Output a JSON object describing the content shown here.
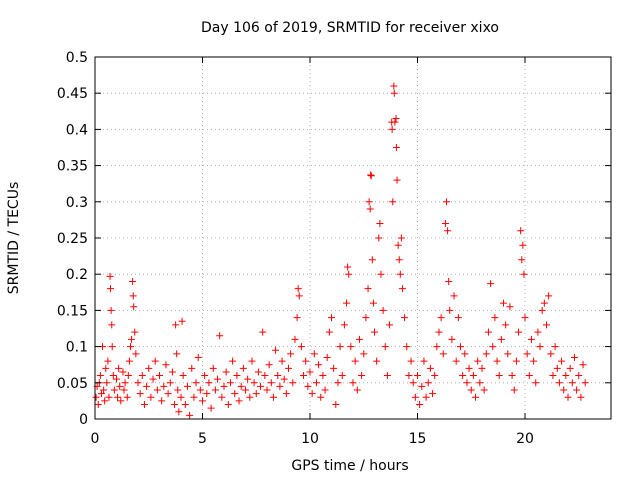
{
  "chart_data": {
    "type": "scatter",
    "title": "Day 106 of 2019, SRMTID for receiver xixo",
    "xlabel": "GPS time / hours",
    "ylabel": "SRMTID / TECUs",
    "xlim": [
      0,
      24
    ],
    "ylim": [
      0,
      0.5
    ],
    "x_ticks": [
      0,
      5,
      10,
      15,
      20
    ],
    "y_ticks": [
      0,
      0.05,
      0.1,
      0.15,
      0.2,
      0.25,
      0.3,
      0.35,
      0.4,
      0.45,
      0.5
    ],
    "x_tick_labels": [
      "0",
      "5",
      "10",
      "15",
      "20"
    ],
    "y_tick_labels": [
      "0",
      "0.05",
      "0.1",
      "0.15",
      "0.2",
      "0.25",
      "0.3",
      "0.35",
      "0.4",
      "0.45",
      "0.5"
    ],
    "grid": true,
    "marker": "plus",
    "color": "#ff0000",
    "series": [
      {
        "name": "SRMTID",
        "points": [
          [
            0.05,
            0.03
          ],
          [
            0.1,
            0.045
          ],
          [
            0.15,
            0.02
          ],
          [
            0.2,
            0.05
          ],
          [
            0.25,
            0.06
          ],
          [
            0.3,
            0.035
          ],
          [
            0.35,
            0.1
          ],
          [
            0.4,
            0.04
          ],
          [
            0.45,
            0.025
          ],
          [
            0.5,
            0.07
          ],
          [
            0.55,
            0.05
          ],
          [
            0.6,
            0.08
          ],
          [
            0.65,
            0.03
          ],
          [
            0.7,
            0.197
          ],
          [
            0.72,
            0.18
          ],
          [
            0.75,
            0.15
          ],
          [
            0.78,
            0.13
          ],
          [
            0.8,
            0.1
          ],
          [
            0.85,
            0.06
          ],
          [
            0.9,
            0.04
          ],
          [
            1.0,
            0.055
          ],
          [
            1.05,
            0.03
          ],
          [
            1.1,
            0.07
          ],
          [
            1.15,
            0.045
          ],
          [
            1.2,
            0.025
          ],
          [
            1.3,
            0.065
          ],
          [
            1.35,
            0.04
          ],
          [
            1.4,
            0.05
          ],
          [
            1.5,
            0.03
          ],
          [
            1.55,
            0.06
          ],
          [
            1.6,
            0.08
          ],
          [
            1.65,
            0.1
          ],
          [
            1.7,
            0.11
          ],
          [
            1.75,
            0.19
          ],
          [
            1.78,
            0.17
          ],
          [
            1.8,
            0.155
          ],
          [
            1.85,
            0.12
          ],
          [
            1.9,
            0.09
          ],
          [
            2.0,
            0.05
          ],
          [
            2.1,
            0.035
          ],
          [
            2.2,
            0.06
          ],
          [
            2.3,
            0.02
          ],
          [
            2.4,
            0.045
          ],
          [
            2.5,
            0.07
          ],
          [
            2.6,
            0.03
          ],
          [
            2.7,
            0.055
          ],
          [
            2.8,
            0.08
          ],
          [
            2.9,
            0.04
          ],
          [
            3.0,
            0.06
          ],
          [
            3.1,
            0.025
          ],
          [
            3.2,
            0.045
          ],
          [
            3.3,
            0.075
          ],
          [
            3.4,
            0.035
          ],
          [
            3.5,
            0.05
          ],
          [
            3.6,
            0.065
          ],
          [
            3.7,
            0.02
          ],
          [
            3.75,
            0.13
          ],
          [
            3.8,
            0.09
          ],
          [
            3.85,
            0.04
          ],
          [
            3.9,
            0.01
          ],
          [
            4.0,
            0.03
          ],
          [
            4.05,
            0.135
          ],
          [
            4.1,
            0.06
          ],
          [
            4.2,
            0.02
          ],
          [
            4.3,
            0.045
          ],
          [
            4.4,
            0.005
          ],
          [
            4.5,
            0.07
          ],
          [
            4.6,
            0.03
          ],
          [
            4.7,
            0.05
          ],
          [
            4.8,
            0.085
          ],
          [
            4.9,
            0.04
          ],
          [
            5.0,
            0.025
          ],
          [
            5.1,
            0.06
          ],
          [
            5.2,
            0.035
          ],
          [
            5.3,
            0.05
          ],
          [
            5.4,
            0.015
          ],
          [
            5.5,
            0.07
          ],
          [
            5.6,
            0.04
          ],
          [
            5.7,
            0.055
          ],
          [
            5.8,
            0.115
          ],
          [
            5.9,
            0.03
          ],
          [
            6.0,
            0.045
          ],
          [
            6.1,
            0.065
          ],
          [
            6.2,
            0.02
          ],
          [
            6.3,
            0.05
          ],
          [
            6.4,
            0.08
          ],
          [
            6.5,
            0.035
          ],
          [
            6.6,
            0.06
          ],
          [
            6.7,
            0.025
          ],
          [
            6.8,
            0.045
          ],
          [
            6.9,
            0.07
          ],
          [
            7.0,
            0.04
          ],
          [
            7.1,
            0.055
          ],
          [
            7.2,
            0.03
          ],
          [
            7.3,
            0.08
          ],
          [
            7.4,
            0.05
          ],
          [
            7.5,
            0.035
          ],
          [
            7.6,
            0.065
          ],
          [
            7.7,
            0.045
          ],
          [
            7.8,
            0.12
          ],
          [
            7.9,
            0.06
          ],
          [
            8.0,
            0.04
          ],
          [
            8.1,
            0.075
          ],
          [
            8.2,
            0.05
          ],
          [
            8.3,
            0.03
          ],
          [
            8.4,
            0.095
          ],
          [
            8.5,
            0.06
          ],
          [
            8.6,
            0.045
          ],
          [
            8.7,
            0.08
          ],
          [
            8.8,
            0.055
          ],
          [
            8.9,
            0.035
          ],
          [
            9.0,
            0.07
          ],
          [
            9.1,
            0.09
          ],
          [
            9.2,
            0.05
          ],
          [
            9.3,
            0.11
          ],
          [
            9.4,
            0.14
          ],
          [
            9.45,
            0.18
          ],
          [
            9.5,
            0.17
          ],
          [
            9.6,
            0.1
          ],
          [
            9.7,
            0.06
          ],
          [
            9.8,
            0.08
          ],
          [
            9.9,
            0.045
          ],
          [
            10.0,
            0.065
          ],
          [
            10.1,
            0.035
          ],
          [
            10.2,
            0.09
          ],
          [
            10.3,
            0.05
          ],
          [
            10.4,
            0.075
          ],
          [
            10.5,
            0.03
          ],
          [
            10.6,
            0.06
          ],
          [
            10.7,
            0.04
          ],
          [
            10.8,
            0.085
          ],
          [
            10.9,
            0.12
          ],
          [
            11.0,
            0.14
          ],
          [
            11.1,
            0.07
          ],
          [
            11.2,
            0.02
          ],
          [
            11.3,
            0.05
          ],
          [
            11.4,
            0.1
          ],
          [
            11.5,
            0.06
          ],
          [
            11.6,
            0.13
          ],
          [
            11.7,
            0.16
          ],
          [
            11.75,
            0.21
          ],
          [
            11.8,
            0.2
          ],
          [
            11.9,
            0.1
          ],
          [
            12.0,
            0.05
          ],
          [
            12.1,
            0.08
          ],
          [
            12.2,
            0.04
          ],
          [
            12.3,
            0.11
          ],
          [
            12.4,
            0.06
          ],
          [
            12.5,
            0.09
          ],
          [
            12.6,
            0.14
          ],
          [
            12.7,
            0.18
          ],
          [
            12.75,
            0.3
          ],
          [
            12.8,
            0.29
          ],
          [
            12.82,
            0.337
          ],
          [
            12.85,
            0.336
          ],
          [
            12.9,
            0.22
          ],
          [
            12.95,
            0.16
          ],
          [
            13.0,
            0.12
          ],
          [
            13.1,
            0.08
          ],
          [
            13.2,
            0.25
          ],
          [
            13.25,
            0.27
          ],
          [
            13.3,
            0.2
          ],
          [
            13.4,
            0.15
          ],
          [
            13.5,
            0.1
          ],
          [
            13.6,
            0.06
          ],
          [
            13.7,
            0.13
          ],
          [
            13.8,
            0.41
          ],
          [
            13.82,
            0.4
          ],
          [
            13.85,
            0.3
          ],
          [
            13.9,
            0.46
          ],
          [
            13.92,
            0.45
          ],
          [
            13.95,
            0.41
          ],
          [
            14.0,
            0.415
          ],
          [
            14.02,
            0.375
          ],
          [
            14.05,
            0.33
          ],
          [
            14.1,
            0.24
          ],
          [
            14.15,
            0.22
          ],
          [
            14.2,
            0.2
          ],
          [
            14.25,
            0.25
          ],
          [
            14.3,
            0.18
          ],
          [
            14.4,
            0.14
          ],
          [
            14.5,
            0.1
          ],
          [
            14.6,
            0.06
          ],
          [
            14.7,
            0.08
          ],
          [
            14.8,
            0.05
          ],
          [
            14.9,
            0.03
          ],
          [
            15.0,
            0.06
          ],
          [
            15.1,
            0.02
          ],
          [
            15.2,
            0.045
          ],
          [
            15.3,
            0.08
          ],
          [
            15.4,
            0.03
          ],
          [
            15.5,
            0.05
          ],
          [
            15.6,
            0.07
          ],
          [
            15.7,
            0.035
          ],
          [
            15.8,
            0.06
          ],
          [
            15.9,
            0.1
          ],
          [
            16.0,
            0.12
          ],
          [
            16.1,
            0.14
          ],
          [
            16.2,
            0.09
          ],
          [
            16.3,
            0.27
          ],
          [
            16.35,
            0.3
          ],
          [
            16.4,
            0.26
          ],
          [
            16.45,
            0.19
          ],
          [
            16.5,
            0.15
          ],
          [
            16.6,
            0.11
          ],
          [
            16.7,
            0.17
          ],
          [
            16.8,
            0.08
          ],
          [
            16.9,
            0.14
          ],
          [
            17.0,
            0.1
          ],
          [
            17.1,
            0.06
          ],
          [
            17.2,
            0.09
          ],
          [
            17.3,
            0.05
          ],
          [
            17.4,
            0.07
          ],
          [
            17.5,
            0.04
          ],
          [
            17.6,
            0.06
          ],
          [
            17.7,
            0.03
          ],
          [
            17.8,
            0.08
          ],
          [
            17.9,
            0.05
          ],
          [
            18.0,
            0.07
          ],
          [
            18.1,
            0.04
          ],
          [
            18.2,
            0.09
          ],
          [
            18.3,
            0.12
          ],
          [
            18.4,
            0.187
          ],
          [
            18.5,
            0.1
          ],
          [
            18.6,
            0.14
          ],
          [
            18.7,
            0.08
          ],
          [
            18.8,
            0.06
          ],
          [
            18.9,
            0.11
          ],
          [
            19.0,
            0.16
          ],
          [
            19.1,
            0.13
          ],
          [
            19.2,
            0.09
          ],
          [
            19.3,
            0.155
          ],
          [
            19.4,
            0.06
          ],
          [
            19.5,
            0.04
          ],
          [
            19.6,
            0.08
          ],
          [
            19.7,
            0.12
          ],
          [
            19.8,
            0.26
          ],
          [
            19.85,
            0.22
          ],
          [
            19.9,
            0.24
          ],
          [
            19.95,
            0.2
          ],
          [
            20.0,
            0.14
          ],
          [
            20.1,
            0.09
          ],
          [
            20.2,
            0.06
          ],
          [
            20.3,
            0.11
          ],
          [
            20.4,
            0.08
          ],
          [
            20.5,
            0.05
          ],
          [
            20.6,
            0.12
          ],
          [
            20.7,
            0.1
          ],
          [
            20.8,
            0.15
          ],
          [
            20.9,
            0.16
          ],
          [
            21.0,
            0.13
          ],
          [
            21.1,
            0.17
          ],
          [
            21.2,
            0.09
          ],
          [
            21.3,
            0.06
          ],
          [
            21.4,
            0.1
          ],
          [
            21.5,
            0.07
          ],
          [
            21.6,
            0.05
          ],
          [
            21.7,
            0.08
          ],
          [
            21.8,
            0.04
          ],
          [
            21.9,
            0.06
          ],
          [
            22.0,
            0.03
          ],
          [
            22.1,
            0.07
          ],
          [
            22.2,
            0.05
          ],
          [
            22.3,
            0.085
          ],
          [
            22.4,
            0.04
          ],
          [
            22.5,
            0.06
          ],
          [
            22.6,
            0.03
          ],
          [
            22.7,
            0.075
          ],
          [
            22.8,
            0.05
          ]
        ]
      }
    ]
  }
}
